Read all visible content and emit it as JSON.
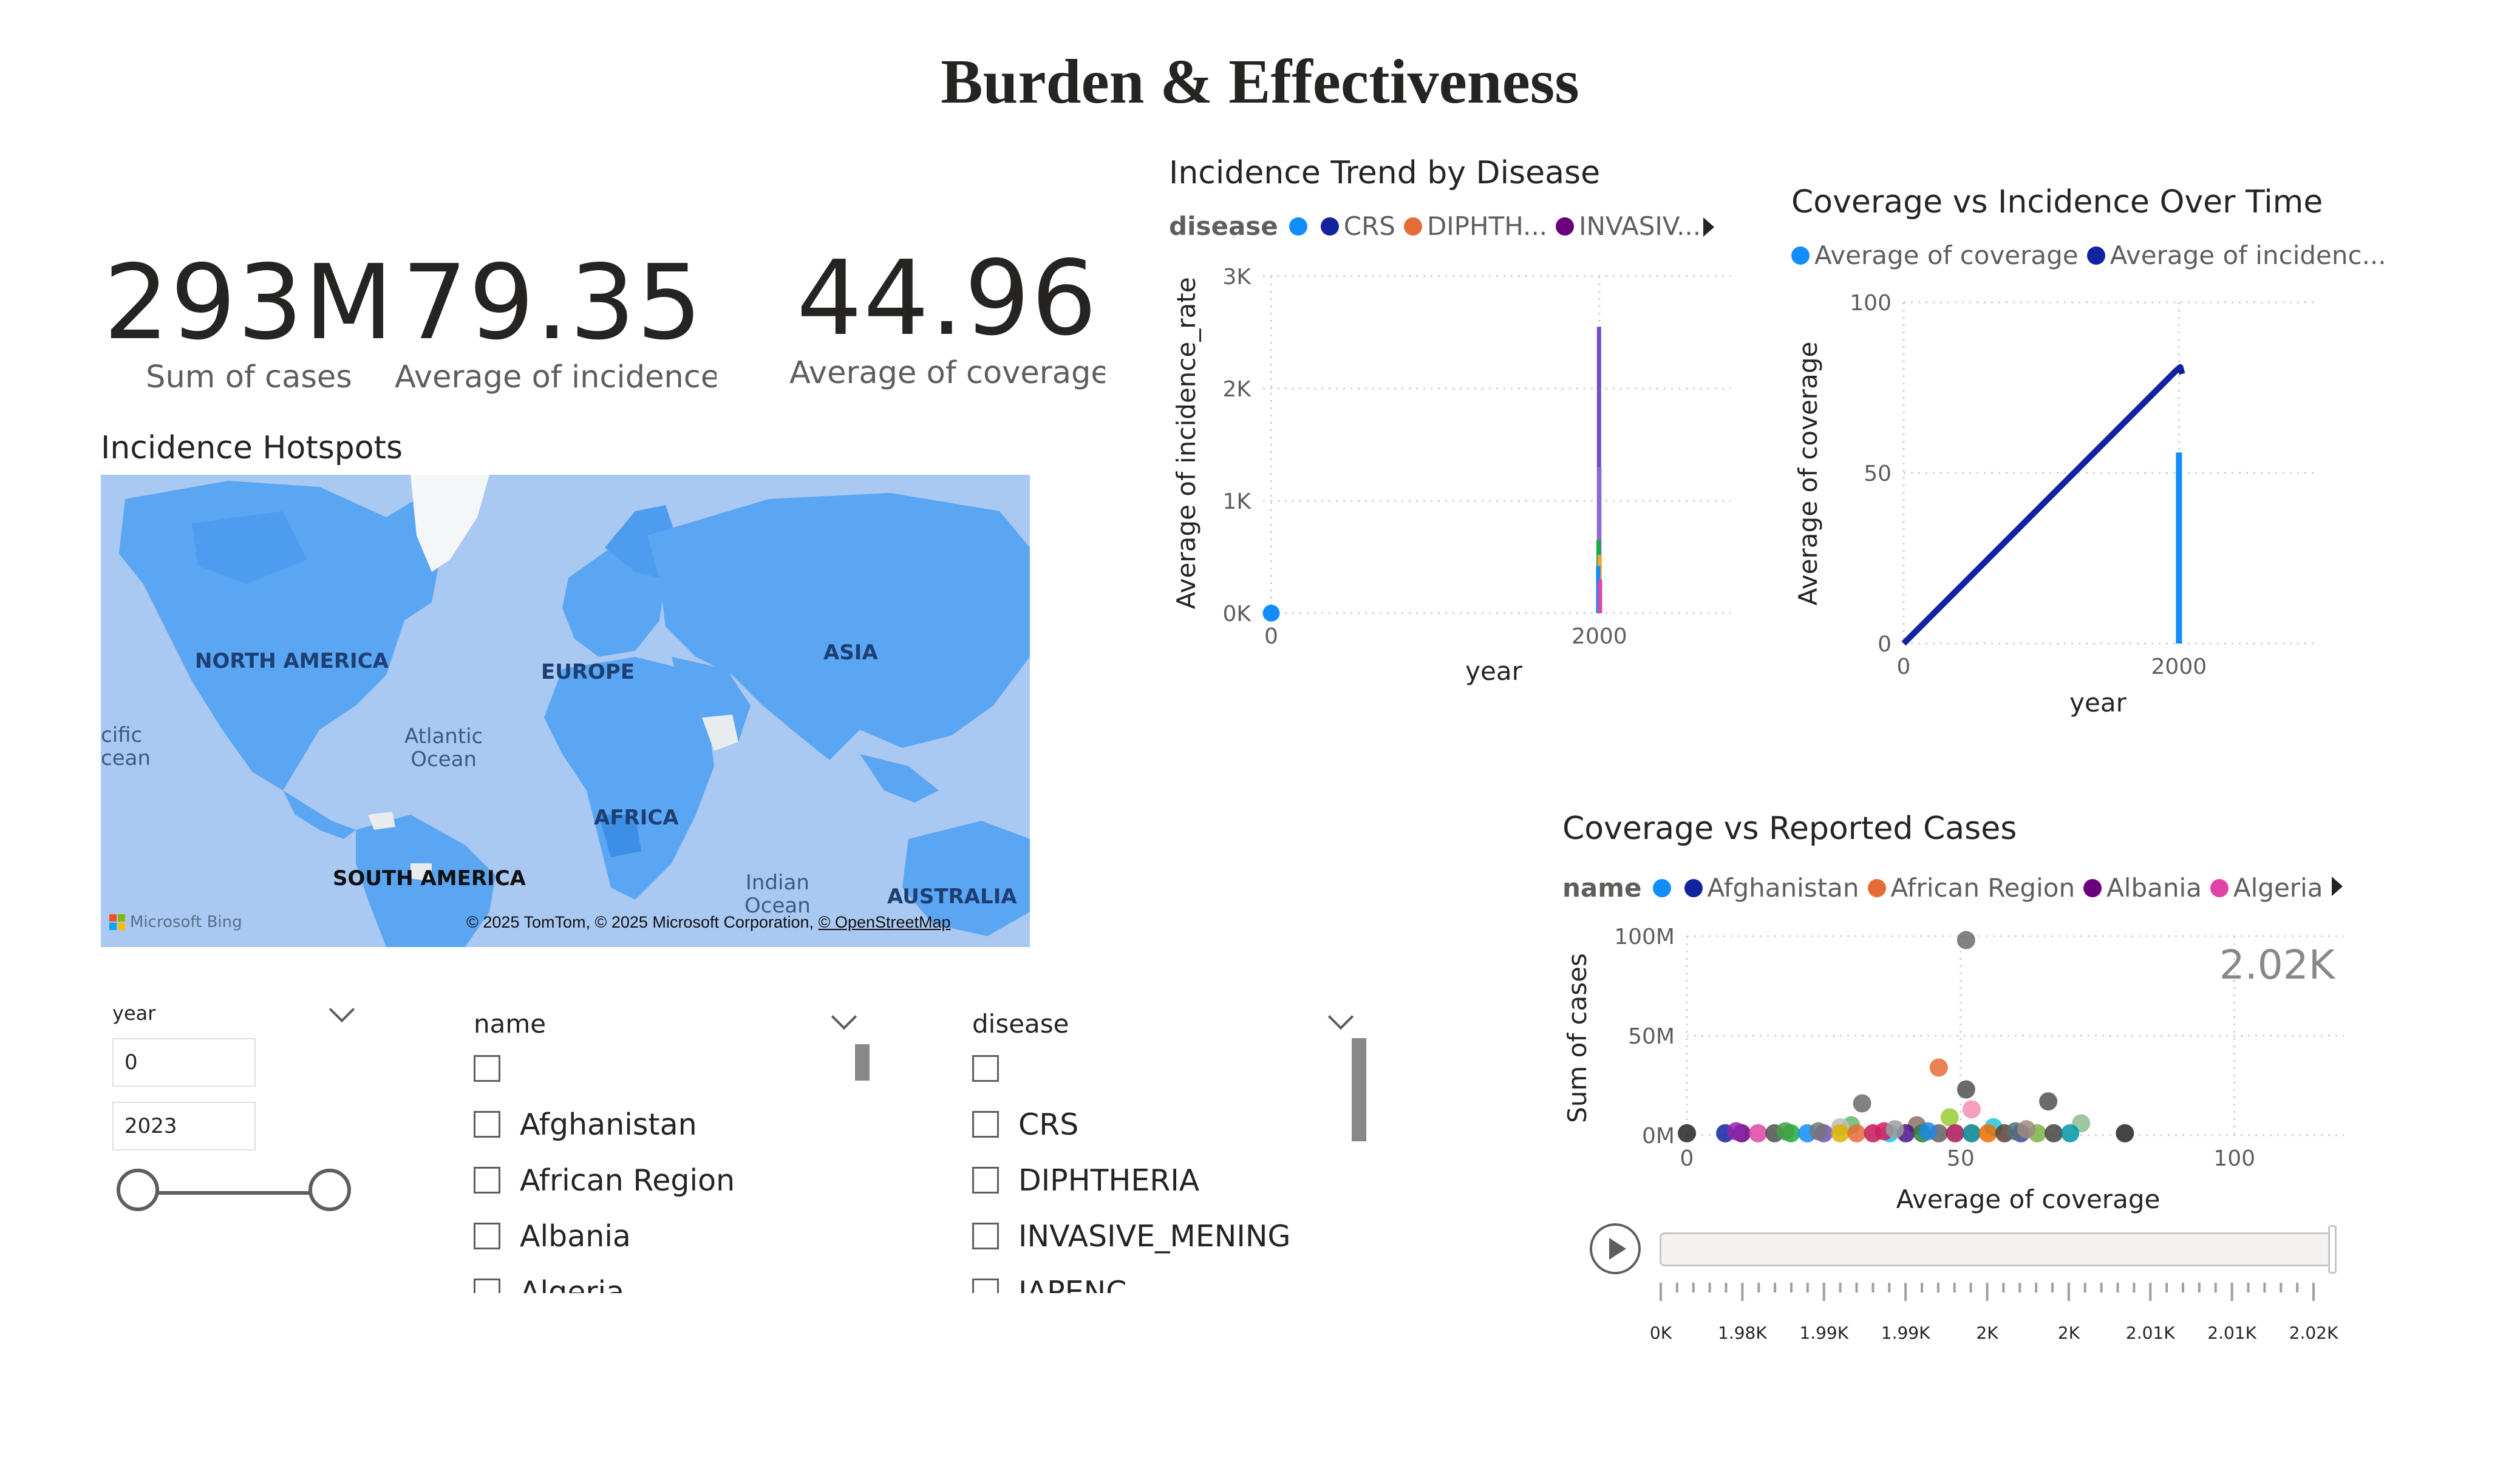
{
  "page": {
    "title": "Burden & Effectiveness"
  },
  "kpis": [
    {
      "value": "293M",
      "label": "Sum of cases"
    },
    {
      "value": "79.35",
      "label": "Average of incidence_ra"
    },
    {
      "value": "44.96",
      "label": "Average of coverage"
    }
  ],
  "map": {
    "title": "Incidence Hotspots",
    "labels": {
      "north_america": "NORTH AMERICA",
      "europe": "EUROPE",
      "asia": "ASIA",
      "africa": "AFRICA",
      "south_america": "SOUTH AMERICA",
      "australia": "AUSTRALIA",
      "atlantic_1": "Atlantic",
      "atlantic_2": "Ocean",
      "indian_1": "Indian",
      "indian_2": "Ocean",
      "pacific_1": "cific",
      "pacific_2": "cean"
    },
    "brand": "Microsoft Bing",
    "copyright_prefix": "© 2025 TomTom, © 2025 Microsoft Corporation, ",
    "copyright_link": "© OpenStreetMap",
    "colors": {
      "ocean": "#a9c8f2",
      "land": "#5aa6f2",
      "land_dark": "#3d8ee6"
    }
  },
  "slicers": {
    "year": {
      "label": "year",
      "min": "0",
      "max": "2023",
      "range": [
        0,
        2023
      ]
    },
    "name": {
      "label": "name",
      "items": [
        "",
        "Afghanistan",
        "African Region",
        "Albania",
        "Algeria"
      ]
    },
    "disease": {
      "label": "disease",
      "items": [
        "",
        "CRS",
        "DIPHTHERIA",
        "INVASIVE_MENING",
        "JAPENC"
      ]
    }
  },
  "chart_data": [
    {
      "id": "incidence-trend",
      "type": "line",
      "title": "Incidence Trend by Disease",
      "legend_title": "disease",
      "legend": [
        {
          "name": "",
          "color": "#118dff"
        },
        {
          "name": "CRS",
          "color": "#12239e"
        },
        {
          "name": "DIPHTH...",
          "color": "#e66c37"
        },
        {
          "name": "INVASIV...",
          "color": "#6b007b"
        }
      ],
      "xlabel": "year",
      "ylabel": "Average of incidence_rate",
      "xlim": [
        -50,
        2800
      ],
      "ylim": [
        0,
        3000
      ],
      "xticks": [
        0,
        2000
      ],
      "xtick_labels": [
        "0",
        "2000"
      ],
      "yticks": [
        0,
        1000,
        2000,
        3000
      ],
      "ytick_labels": [
        "0K",
        "1K",
        "2K",
        "3K"
      ],
      "points": [
        {
          "x": 0,
          "y": 0,
          "color": "#118dff"
        }
      ],
      "spikes": [
        {
          "x": 1998,
          "ymin": 0,
          "ymax": 2550,
          "color": "#744ec2"
        },
        {
          "x": 2000,
          "ymin": 0,
          "ymax": 1300,
          "color": "#8a6bd0"
        },
        {
          "x": 1995,
          "ymin": 0,
          "ymax": 650,
          "color": "#1aab40"
        },
        {
          "x": 2002,
          "ymin": 0,
          "ymax": 520,
          "color": "#f2a33a"
        },
        {
          "x": 1993,
          "ymin": 0,
          "ymax": 420,
          "color": "#118dff"
        },
        {
          "x": 2004,
          "ymin": 0,
          "ymax": 300,
          "color": "#e044a7"
        }
      ]
    },
    {
      "id": "coverage-vs-incidence",
      "type": "line",
      "title": "Coverage vs Incidence Over Time",
      "legend": [
        {
          "name": "Average of coverage",
          "color": "#118dff"
        },
        {
          "name": "Average of incidenc...",
          "color": "#12239e"
        }
      ],
      "xlabel": "year",
      "ylabel": "Average of coverage",
      "xlim": [
        0,
        3000
      ],
      "ylim": [
        0,
        100
      ],
      "xticks": [
        0,
        2000
      ],
      "xtick_labels": [
        "0",
        "2000"
      ],
      "yticks": [
        0,
        50,
        100
      ],
      "ytick_labels": [
        "0",
        "50",
        "100"
      ],
      "series": [
        {
          "name": "Average of incidenc...",
          "color": "#12239e",
          "x": [
            0,
            1980,
            2010,
            2023
          ],
          "y": [
            0,
            80,
            81,
            79
          ]
        },
        {
          "name": "Average of coverage",
          "color": "#118dff",
          "spike": {
            "x": 2000,
            "ymin": 0,
            "ymax": 56
          }
        }
      ]
    },
    {
      "id": "coverage-vs-cases",
      "type": "scatter",
      "title": "Coverage vs Reported Cases",
      "legend_title": "name",
      "legend": [
        {
          "name": "",
          "color": "#118dff"
        },
        {
          "name": "Afghanistan",
          "color": "#12239e"
        },
        {
          "name": "African Region",
          "color": "#e66c37"
        },
        {
          "name": "Albania",
          "color": "#6b007b"
        },
        {
          "name": "Algeria",
          "color": "#e044a7"
        }
      ],
      "xlabel": "Average of coverage",
      "ylabel": "Sum of cases",
      "xlim": [
        0,
        120
      ],
      "ylim": [
        0,
        100
      ],
      "xticks": [
        0,
        50,
        100
      ],
      "xtick_labels": [
        "0",
        "50",
        "100"
      ],
      "yticks": [
        0,
        50,
        100
      ],
      "ytick_labels": [
        "0M",
        "50M",
        "100M"
      ],
      "watermark": "2.02K",
      "points": [
        {
          "x": 51,
          "y": 98,
          "color": "#6b6b6b"
        },
        {
          "x": 46,
          "y": 34,
          "color": "#e66c37"
        },
        {
          "x": 51,
          "y": 23,
          "color": "#505050"
        },
        {
          "x": 66,
          "y": 17,
          "color": "#505050"
        },
        {
          "x": 32,
          "y": 16,
          "color": "#6b6b6b"
        },
        {
          "x": 52,
          "y": 13,
          "color": "#f48fb1"
        },
        {
          "x": 48,
          "y": 9,
          "color": "#9acd32"
        },
        {
          "x": 72,
          "y": 6,
          "color": "#8fbc8f"
        },
        {
          "x": 30,
          "y": 5,
          "color": "#66bb6a"
        },
        {
          "x": 42,
          "y": 5,
          "color": "#8d6e63"
        },
        {
          "x": 56,
          "y": 4,
          "color": "#26c6da"
        },
        {
          "x": 28,
          "y": 4,
          "color": "#bdbdbd"
        },
        {
          "x": 0,
          "y": 1,
          "color": "#252423"
        },
        {
          "x": 80,
          "y": 1,
          "color": "#252423"
        },
        {
          "x": 7,
          "y": 1,
          "color": "#12239e"
        },
        {
          "x": 10,
          "y": 1,
          "color": "#6b007b"
        },
        {
          "x": 13,
          "y": 1,
          "color": "#e044a7"
        },
        {
          "x": 16,
          "y": 1,
          "color": "#505050"
        },
        {
          "x": 19,
          "y": 1,
          "color": "#1aab40"
        },
        {
          "x": 22,
          "y": 1,
          "color": "#118dff"
        },
        {
          "x": 25,
          "y": 1,
          "color": "#744ec2"
        },
        {
          "x": 28,
          "y": 1,
          "color": "#d9b300"
        },
        {
          "x": 31,
          "y": 1,
          "color": "#e66c37"
        },
        {
          "x": 34,
          "y": 1,
          "color": "#c2185b"
        },
        {
          "x": 37,
          "y": 1,
          "color": "#15c6f4"
        },
        {
          "x": 40,
          "y": 1,
          "color": "#4a148c"
        },
        {
          "x": 43,
          "y": 1,
          "color": "#2e7d32"
        },
        {
          "x": 46,
          "y": 1,
          "color": "#616161"
        },
        {
          "x": 49,
          "y": 1,
          "color": "#ad1457"
        },
        {
          "x": 52,
          "y": 1,
          "color": "#00838f"
        },
        {
          "x": 55,
          "y": 1,
          "color": "#ef6c00"
        },
        {
          "x": 58,
          "y": 1,
          "color": "#5d4037"
        },
        {
          "x": 61,
          "y": 1,
          "color": "#3949ab"
        },
        {
          "x": 64,
          "y": 1,
          "color": "#7cb342"
        },
        {
          "x": 67,
          "y": 1,
          "color": "#424242"
        },
        {
          "x": 70,
          "y": 1,
          "color": "#0097a7"
        },
        {
          "x": 9,
          "y": 2,
          "color": "#8e24aa"
        },
        {
          "x": 18,
          "y": 2,
          "color": "#43a047"
        },
        {
          "x": 24,
          "y": 2,
          "color": "#757575"
        },
        {
          "x": 36,
          "y": 2,
          "color": "#d81b60"
        },
        {
          "x": 44,
          "y": 2,
          "color": "#1e88e5"
        },
        {
          "x": 60,
          "y": 2,
          "color": "#546e7a"
        },
        {
          "x": 38,
          "y": 3,
          "color": "#9e9e9e"
        },
        {
          "x": 62,
          "y": 3,
          "color": "#a1887f"
        }
      ],
      "play_axis": {
        "labels": [
          "0K",
          "1.98K",
          "1.99K",
          "1.99K",
          "2K",
          "2K",
          "2.01K",
          "2.01K",
          "2.02K"
        ]
      }
    }
  ]
}
